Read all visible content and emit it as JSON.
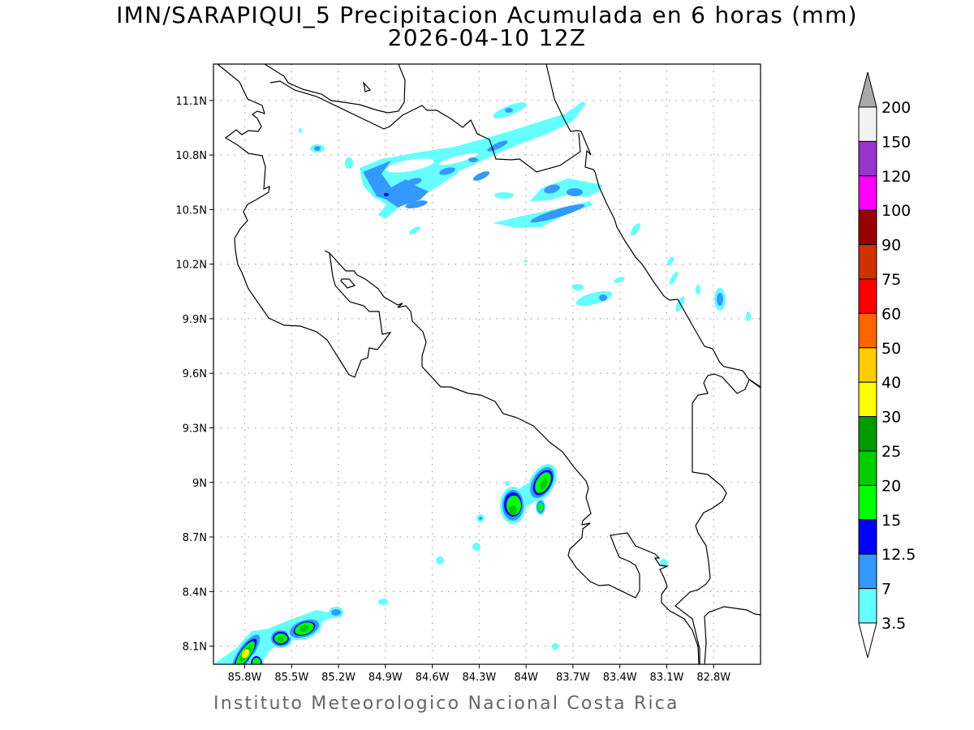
{
  "title": {
    "line1": "IMN/SARAPIQUI_5 Precipitacion Acumulada en 6 horas (mm)",
    "line2": "2026-04-10 12Z"
  },
  "footer": "Instituto Meteorologico Nacional Costa Rica",
  "map": {
    "region": "Costa Rica",
    "lon_range_west": [
      86.0,
      82.5
    ],
    "lat_range_north": [
      8.0,
      11.3
    ],
    "lon_ticks": [
      {
        "value": 85.8,
        "label": "85.8W"
      },
      {
        "value": 85.5,
        "label": "85.5W"
      },
      {
        "value": 85.2,
        "label": "85.2W"
      },
      {
        "value": 84.9,
        "label": "84.9W"
      },
      {
        "value": 84.6,
        "label": "84.6W"
      },
      {
        "value": 84.3,
        "label": "84.3W"
      },
      {
        "value": 84.0,
        "label": "84W"
      },
      {
        "value": 83.7,
        "label": "83.7W"
      },
      {
        "value": 83.4,
        "label": "83.4W"
      },
      {
        "value": 83.1,
        "label": "83.1W"
      },
      {
        "value": 82.8,
        "label": "82.8W"
      }
    ],
    "lat_ticks": [
      {
        "value": 8.1,
        "label": "8.1N"
      },
      {
        "value": 8.4,
        "label": "8.4N"
      },
      {
        "value": 8.7,
        "label": "8.7N"
      },
      {
        "value": 9.0,
        "label": "9N"
      },
      {
        "value": 9.3,
        "label": "9.3N"
      },
      {
        "value": 9.6,
        "label": "9.6N"
      },
      {
        "value": 9.9,
        "label": "9.9N"
      },
      {
        "value": 10.2,
        "label": "10.2N"
      },
      {
        "value": 10.5,
        "label": "10.5N"
      },
      {
        "value": 10.8,
        "label": "10.8N"
      },
      {
        "value": 11.1,
        "label": "11.1N"
      }
    ]
  },
  "colorbar": {
    "labels": [
      "200",
      "150",
      "120",
      "100",
      "90",
      "75",
      "60",
      "50",
      "40",
      "30",
      "25",
      "20",
      "15",
      "12.5",
      "7",
      "3.5"
    ],
    "over_color": "#aaaaaa",
    "under_color": "#ffffff",
    "colors_top_to_bottom": [
      "#f2f2f2",
      "#9933cc",
      "#ff00ff",
      "#990000",
      "#cc3300",
      "#ff0000",
      "#ff6600",
      "#ffcc00",
      "#ffff00",
      "#009900",
      "#00cc00",
      "#00ff00",
      "#0000ff",
      "#3399ff",
      "#66ffff"
    ]
  }
}
